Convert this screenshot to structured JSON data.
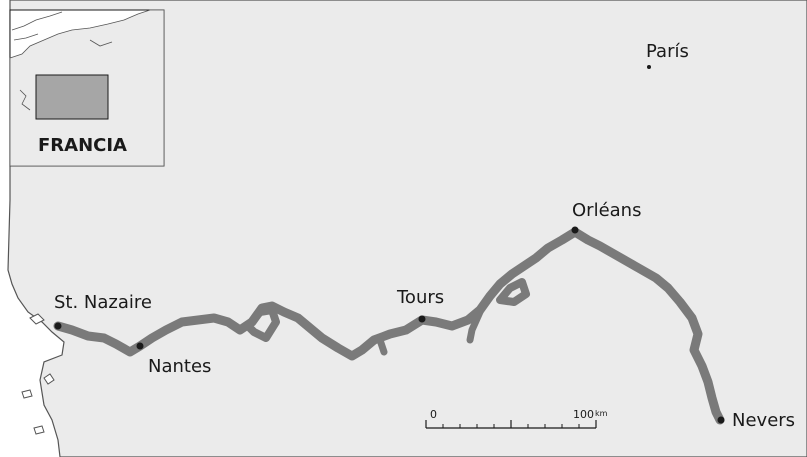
{
  "map": {
    "colors": {
      "land": "#ebebeb",
      "sea": "#ffffff",
      "coast": "#555555",
      "river": "#7a7a7a",
      "city_dot": "#1a1a1a",
      "inset_highlight": "#a6a6a6"
    },
    "inset": {
      "country_label": "FRANCIA"
    },
    "cities": [
      {
        "key": "paris",
        "name": "París"
      },
      {
        "key": "orleans",
        "name": "Orléans"
      },
      {
        "key": "tours",
        "name": "Tours"
      },
      {
        "key": "st-nazaire",
        "name": "St. Nazaire"
      },
      {
        "key": "nantes",
        "name": "Nantes"
      },
      {
        "key": "nevers",
        "name": "Nevers"
      }
    ],
    "scale_bar": {
      "start_label": "0",
      "end_label": "100",
      "unit": "km"
    }
  }
}
